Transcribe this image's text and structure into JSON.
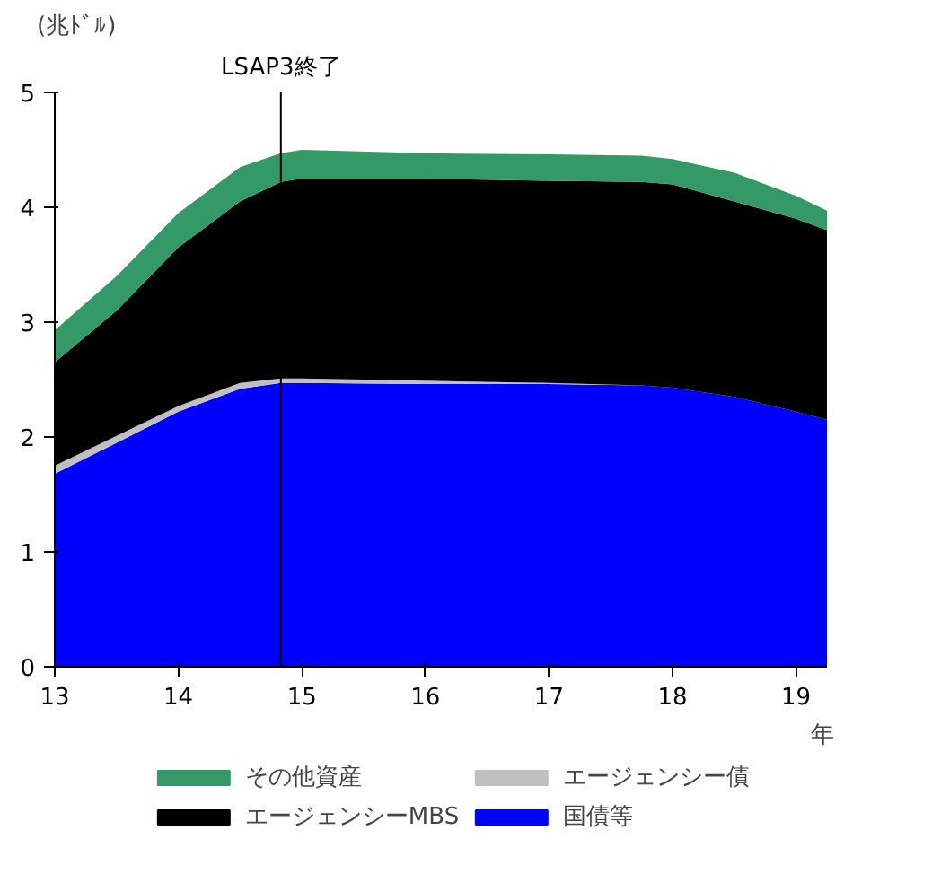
{
  "chart_data": {
    "type": "area",
    "stacked": true,
    "ylabel": "(兆ﾄﾞﾙ)",
    "xlabel": "年",
    "x": [
      13,
      13.5,
      14,
      14.5,
      14.83,
      15,
      16,
      17,
      17.75,
      18,
      18.5,
      19,
      19.25
    ],
    "series": [
      {
        "name": "国債等",
        "color": "#0000ff",
        "values": [
          1.68,
          1.95,
          2.22,
          2.42,
          2.47,
          2.47,
          2.46,
          2.46,
          2.45,
          2.43,
          2.35,
          2.22,
          2.15
        ]
      },
      {
        "name": "エージェンシー債",
        "color": "#c0c0c0",
        "values": [
          0.07,
          0.06,
          0.05,
          0.05,
          0.04,
          0.04,
          0.03,
          0.01,
          0.0,
          0.0,
          0.0,
          0.0,
          0.0
        ]
      },
      {
        "name": "エージェンシーMBS",
        "color": "#000000",
        "values": [
          0.9,
          1.09,
          1.38,
          1.58,
          1.71,
          1.74,
          1.76,
          1.76,
          1.77,
          1.77,
          1.7,
          1.68,
          1.65
        ]
      },
      {
        "name": "その他資産",
        "color": "#339966",
        "values": [
          0.28,
          0.3,
          0.3,
          0.3,
          0.25,
          0.25,
          0.22,
          0.23,
          0.23,
          0.22,
          0.25,
          0.2,
          0.17
        ]
      }
    ],
    "xlim": [
      13,
      19.25
    ],
    "xticks": [
      13,
      14,
      15,
      16,
      17,
      18,
      19
    ],
    "ylim": [
      0,
      5
    ],
    "yticks": [
      0,
      1,
      2,
      3,
      4,
      5
    ],
    "ref_lines": [
      {
        "axis": "x",
        "value": 14.83,
        "label": "LSAP3終了",
        "color": "#000000"
      }
    ],
    "grid": false,
    "legend": "bottom"
  }
}
